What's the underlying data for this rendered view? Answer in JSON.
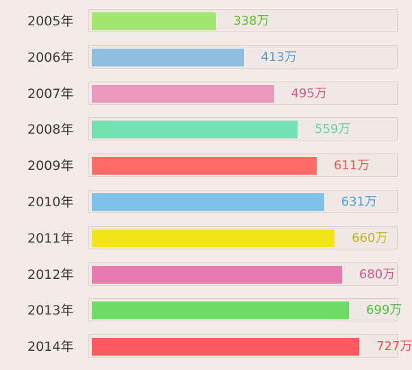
{
  "chart_data": {
    "type": "bar",
    "orientation": "horizontal",
    "categories": [
      "2005年",
      "2006年",
      "2007年",
      "2008年",
      "2009年",
      "2010年",
      "2011年",
      "2012年",
      "2013年",
      "2014年"
    ],
    "values": [
      338,
      413,
      495,
      559,
      611,
      631,
      660,
      680,
      699,
      727
    ],
    "value_labels": [
      "338万",
      "413万",
      "495万",
      "559万",
      "611万",
      "631万",
      "660万",
      "680万",
      "699万",
      "727万"
    ],
    "bar_colors": [
      "#a3e672",
      "#8fbfe0",
      "#ea98bb",
      "#6fe2b0",
      "#ff6b66",
      "#7fc3ec",
      "#f2e61a",
      "#e77bb0",
      "#6fdc66",
      "#ff5a5f"
    ],
    "label_colors": [
      "#5fbf23",
      "#5e9cd0",
      "#d95b8f",
      "#5ed8a3",
      "#ef5a55",
      "#4d9fd8",
      "#c7b51a",
      "#d85594",
      "#4cc043",
      "#ef4b52"
    ],
    "xlim": [
      0,
      820
    ],
    "title": "",
    "xlabel": "",
    "ylabel": "",
    "grid": false,
    "legend": "none"
  }
}
